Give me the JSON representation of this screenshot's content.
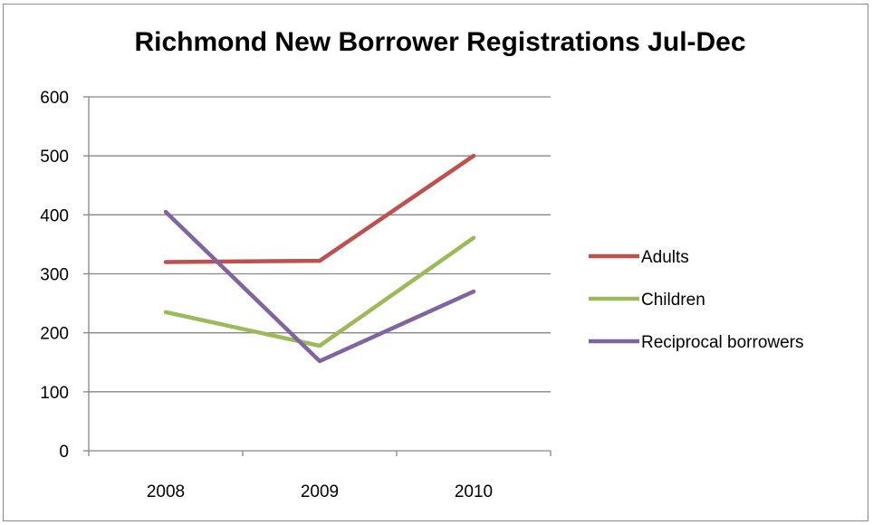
{
  "chart_data": {
    "type": "line",
    "title": "Richmond New Borrower Registrations Jul-Dec",
    "xlabel": "",
    "ylabel": "",
    "categories": [
      "2008",
      "2009",
      "2010"
    ],
    "ylim": [
      0,
      600
    ],
    "yticks": [
      0,
      100,
      200,
      300,
      400,
      500,
      600
    ],
    "grid": true,
    "legend_position": "right",
    "series": [
      {
        "name": "Adults",
        "color": "#c0504d",
        "values": [
          320,
          322,
          500
        ]
      },
      {
        "name": "Children",
        "color": "#9bbb59",
        "values": [
          235,
          178,
          361
        ]
      },
      {
        "name": "Reciprocal borrowers",
        "color": "#8064a2",
        "values": [
          405,
          152,
          270
        ]
      }
    ]
  }
}
